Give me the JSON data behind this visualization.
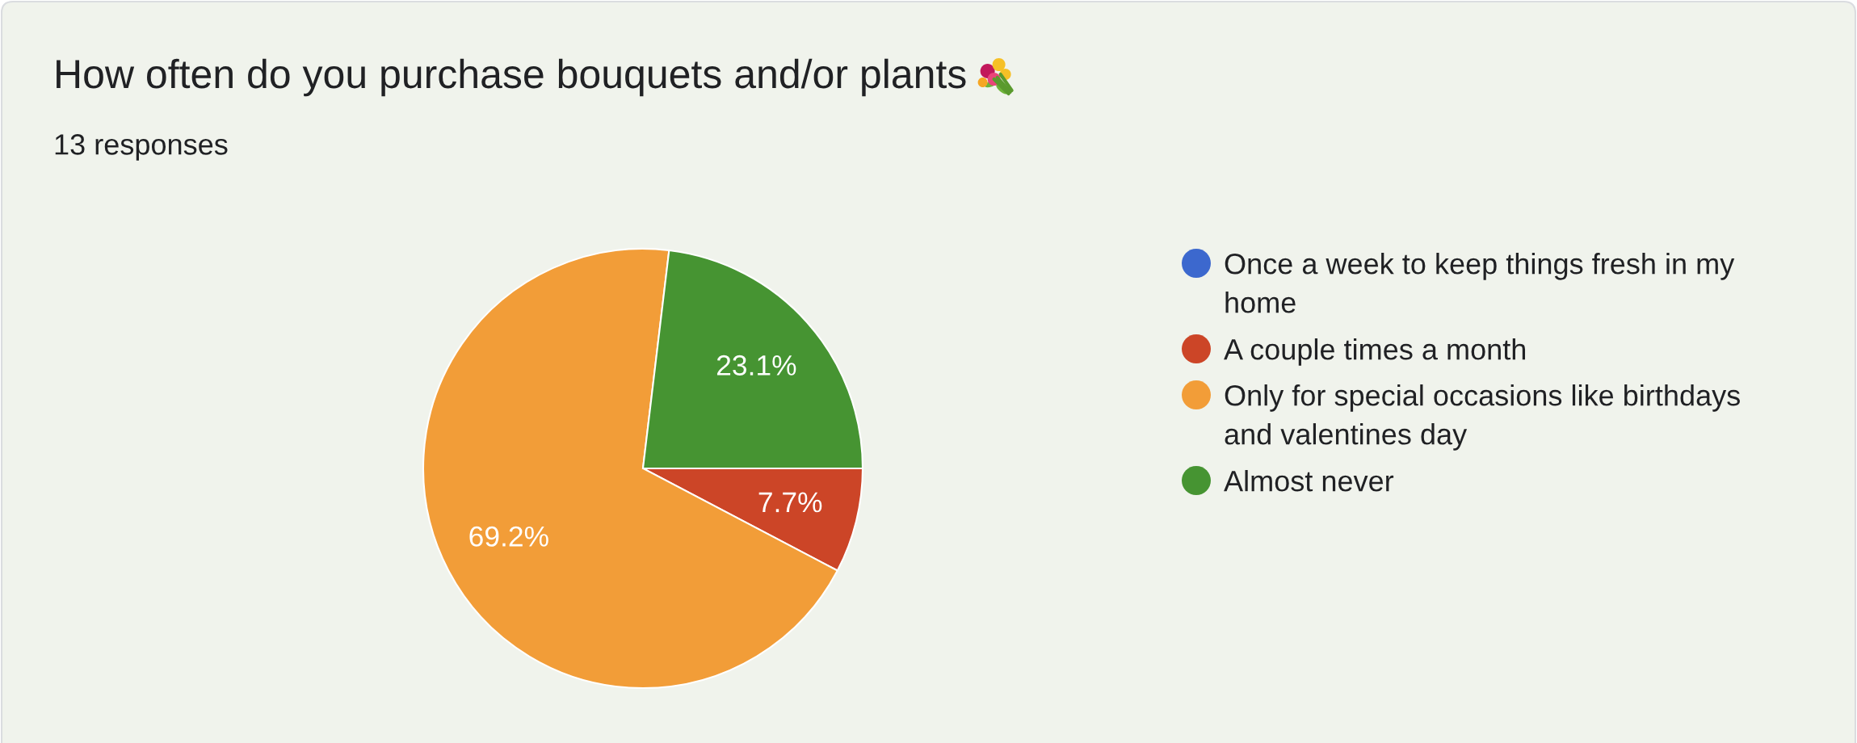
{
  "chart_data": {
    "type": "pie",
    "title": "How often do you purchase bouquets and/or plants",
    "subtitle": "13 responses",
    "categories": [
      "Once a week to keep things fresh in my home",
      "A couple times a month",
      "Only for special occasions like birthdays and valentines day",
      "Almost never"
    ],
    "values": [
      0,
      7.7,
      69.2,
      23.1
    ],
    "colors": [
      "#3c68ce",
      "#cc4527",
      "#f29d38",
      "#469432"
    ],
    "value_labels": [
      null,
      "7.7%",
      "69.2%",
      "23.1%"
    ],
    "legend": "right"
  }
}
